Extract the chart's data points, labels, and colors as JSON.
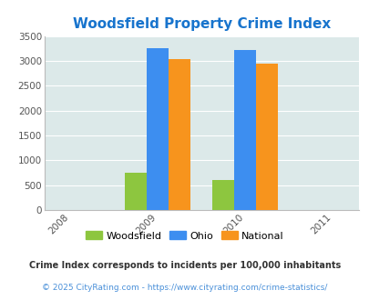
{
  "title": "Woodsfield Property Crime Index",
  "title_color": "#1874cd",
  "years": [
    2008,
    2009,
    2010,
    2011
  ],
  "bar_years": [
    2009,
    2010
  ],
  "woodsfield": [
    750,
    600
  ],
  "ohio": [
    3250,
    3220
  ],
  "national": [
    3040,
    2950
  ],
  "colors": {
    "woodsfield": "#8dc63f",
    "ohio": "#3d8ef0",
    "national": "#f7941d"
  },
  "ylim": [
    0,
    3500
  ],
  "yticks": [
    0,
    500,
    1000,
    1500,
    2000,
    2500,
    3000,
    3500
  ],
  "background_color": "#dce9e9",
  "bar_width": 0.25,
  "legend_labels": [
    "Woodsfield",
    "Ohio",
    "National"
  ],
  "footnote1": "Crime Index corresponds to incidents per 100,000 inhabitants",
  "footnote2": "© 2025 CityRating.com - https://www.cityrating.com/crime-statistics/",
  "footnote1_color": "#333333",
  "footnote2_color": "#888888",
  "footnote2_link_color": "#4a90d9"
}
